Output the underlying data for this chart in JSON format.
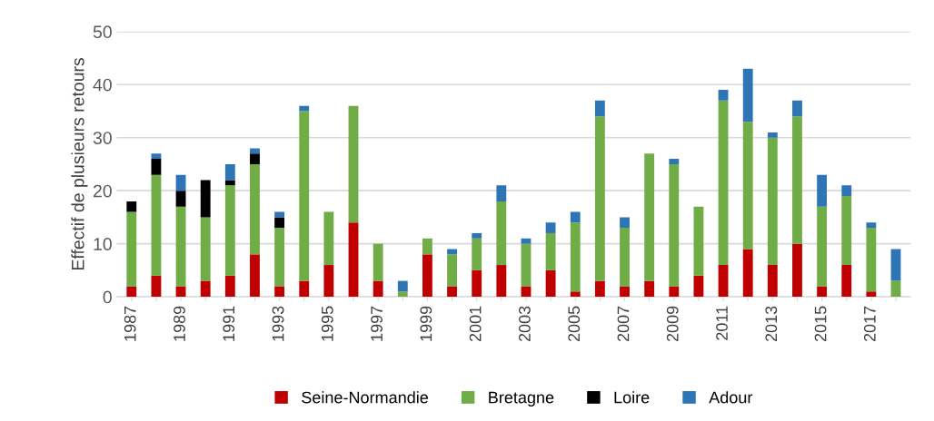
{
  "chart_data": {
    "type": "bar",
    "stacked": true,
    "ylabel": "Effectif de plusieurs retours",
    "categories": [
      "1987",
      null,
      "1989",
      null,
      "1991",
      null,
      "1993",
      null,
      "1995",
      null,
      "1997",
      null,
      "1999",
      null,
      "2001",
      null,
      "2003",
      null,
      "2005",
      null,
      "2007",
      null,
      "2009",
      null,
      "2011",
      null,
      "2013",
      null,
      "2015",
      null,
      "2017",
      null
    ],
    "series": [
      {
        "name": "Seine-Normandie",
        "color": "#c00000",
        "values": [
          2,
          4,
          2,
          3,
          4,
          8,
          2,
          3,
          6,
          14,
          3,
          0,
          8,
          2,
          5,
          6,
          2,
          5,
          1,
          3,
          2,
          3,
          2,
          4,
          6,
          9,
          6,
          10,
          2,
          6,
          1,
          0
        ]
      },
      {
        "name": "Bretagne",
        "color": "#70ad47",
        "values": [
          14,
          19,
          15,
          12,
          17,
          17,
          11,
          32,
          10,
          22,
          7,
          1,
          3,
          6,
          6,
          12,
          8,
          7,
          13,
          31,
          11,
          24,
          23,
          13,
          31,
          24,
          24,
          24,
          15,
          13,
          12,
          3
        ]
      },
      {
        "name": "Loire",
        "color": "#000000",
        "values": [
          2,
          3,
          3,
          7,
          1,
          2,
          2,
          0,
          0,
          0,
          0,
          0,
          0,
          0,
          0,
          0,
          0,
          0,
          0,
          0,
          0,
          0,
          0,
          0,
          0,
          0,
          0,
          0,
          0,
          0,
          0,
          0
        ]
      },
      {
        "name": "Adour",
        "color": "#2e75b6",
        "values": [
          0,
          1,
          3,
          0,
          3,
          1,
          1,
          1,
          0,
          0,
          0,
          2,
          0,
          1,
          1,
          3,
          1,
          2,
          2,
          3,
          2,
          0,
          1,
          0,
          2,
          10,
          1,
          3,
          6,
          2,
          1,
          6
        ]
      }
    ],
    "ylim": [
      0,
      50
    ],
    "yticks": [
      0,
      10,
      20,
      30,
      40,
      50
    ],
    "grid": "y",
    "legend": "bottom"
  }
}
